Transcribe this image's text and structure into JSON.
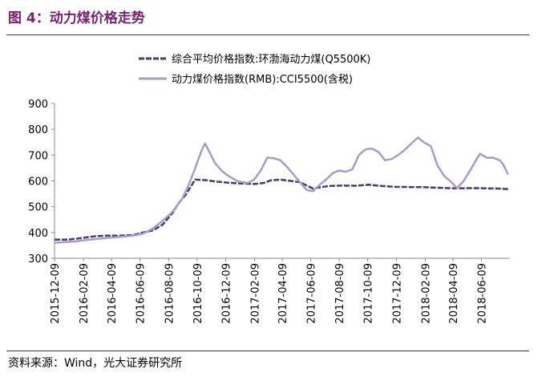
{
  "figure_title": "图 4：动力煤价格走势",
  "source_note": "资料来源：Wind，光大证券研究所",
  "colors": {
    "series1": "#4b3a6b",
    "series2": "#a99ac8",
    "title": "#7a1f6e"
  },
  "chart_data": {
    "type": "line",
    "title": "",
    "xlabel": "",
    "ylabel": "",
    "ylim": [
      300,
      900
    ],
    "yticks": [
      300,
      400,
      500,
      600,
      700,
      800,
      900
    ],
    "xlim": [
      "2015-12-09",
      "2018-08-09"
    ],
    "xticks": [
      "2015-12-09",
      "2016-02-09",
      "2016-04-09",
      "2016-06-09",
      "2016-08-09",
      "2016-10-09",
      "2016-12-09",
      "2017-02-09",
      "2017-04-09",
      "2017-06-09",
      "2017-08-09",
      "2017-10-09",
      "2017-12-09",
      "2018-02-09",
      "2018-04-09",
      "2018-06-09"
    ],
    "grid": false,
    "legend": "top-center",
    "series": [
      {
        "name": "综合平均价格指数:环渤海动力煤(Q5500K)",
        "style": "dashed",
        "points": [
          [
            "2015-12-09",
            372
          ],
          [
            "2016-01-06",
            372
          ],
          [
            "2016-02-03",
            378
          ],
          [
            "2016-03-02",
            385
          ],
          [
            "2016-03-30",
            388
          ],
          [
            "2016-04-27",
            388
          ],
          [
            "2016-05-25",
            390
          ],
          [
            "2016-06-15",
            400
          ],
          [
            "2016-07-06",
            408
          ],
          [
            "2016-07-27",
            430
          ],
          [
            "2016-08-17",
            475
          ],
          [
            "2016-08-31",
            515
          ],
          [
            "2016-09-14",
            545
          ],
          [
            "2016-09-28",
            585
          ],
          [
            "2016-10-05",
            605
          ],
          [
            "2016-10-26",
            603
          ],
          [
            "2016-11-16",
            598
          ],
          [
            "2016-12-14",
            593
          ],
          [
            "2017-01-11",
            590
          ],
          [
            "2017-02-08",
            588
          ],
          [
            "2017-03-01",
            592
          ],
          [
            "2017-03-15",
            602
          ],
          [
            "2017-04-05",
            605
          ],
          [
            "2017-04-26",
            600
          ],
          [
            "2017-05-17",
            595
          ],
          [
            "2017-05-31",
            582
          ],
          [
            "2017-06-14",
            570
          ],
          [
            "2017-06-28",
            575
          ],
          [
            "2017-07-19",
            580
          ],
          [
            "2017-08-16",
            582
          ],
          [
            "2017-09-13",
            581
          ],
          [
            "2017-10-11",
            585
          ],
          [
            "2017-11-08",
            580
          ],
          [
            "2017-12-06",
            577
          ],
          [
            "2018-01-03",
            576
          ],
          [
            "2018-01-31",
            576
          ],
          [
            "2018-02-28",
            574
          ],
          [
            "2018-03-28",
            572
          ],
          [
            "2018-04-25",
            571
          ],
          [
            "2018-05-23",
            572
          ],
          [
            "2018-06-20",
            571
          ],
          [
            "2018-07-18",
            570
          ],
          [
            "2018-08-05",
            568
          ]
        ]
      },
      {
        "name": "动力煤价格指数(RMB):CCI5500(含税)",
        "style": "solid",
        "points": [
          [
            "2015-12-09",
            360
          ],
          [
            "2015-12-30",
            363
          ],
          [
            "2016-01-20",
            365
          ],
          [
            "2016-02-10",
            370
          ],
          [
            "2016-03-09",
            375
          ],
          [
            "2016-04-06",
            380
          ],
          [
            "2016-05-04",
            384
          ],
          [
            "2016-05-25",
            388
          ],
          [
            "2016-06-15",
            395
          ],
          [
            "2016-07-06",
            415
          ],
          [
            "2016-07-27",
            445
          ],
          [
            "2016-08-17",
            480
          ],
          [
            "2016-09-07",
            530
          ],
          [
            "2016-09-21",
            585
          ],
          [
            "2016-10-05",
            650
          ],
          [
            "2016-10-19",
            720
          ],
          [
            "2016-10-26",
            745
          ],
          [
            "2016-11-02",
            720
          ],
          [
            "2016-11-16",
            670
          ],
          [
            "2016-11-30",
            640
          ],
          [
            "2016-12-14",
            620
          ],
          [
            "2017-01-04",
            598
          ],
          [
            "2017-01-25",
            592
          ],
          [
            "2017-02-08",
            605
          ],
          [
            "2017-02-22",
            640
          ],
          [
            "2017-03-08",
            690
          ],
          [
            "2017-03-22",
            688
          ],
          [
            "2017-04-05",
            680
          ],
          [
            "2017-04-19",
            655
          ],
          [
            "2017-05-03",
            625
          ],
          [
            "2017-05-17",
            595
          ],
          [
            "2017-05-31",
            565
          ],
          [
            "2017-06-14",
            560
          ],
          [
            "2017-06-28",
            585
          ],
          [
            "2017-07-12",
            605
          ],
          [
            "2017-07-26",
            630
          ],
          [
            "2017-08-09",
            640
          ],
          [
            "2017-08-23",
            635
          ],
          [
            "2017-09-06",
            645
          ],
          [
            "2017-09-20",
            700
          ],
          [
            "2017-10-04",
            722
          ],
          [
            "2017-10-18",
            725
          ],
          [
            "2017-11-01",
            712
          ],
          [
            "2017-11-15",
            680
          ],
          [
            "2017-11-29",
            685
          ],
          [
            "2017-12-13",
            700
          ],
          [
            "2017-12-27",
            720
          ],
          [
            "2018-01-10",
            745
          ],
          [
            "2018-01-24",
            768
          ],
          [
            "2018-02-07",
            748
          ],
          [
            "2018-02-21",
            735
          ],
          [
            "2018-03-07",
            660
          ],
          [
            "2018-03-21",
            620
          ],
          [
            "2018-04-04",
            598
          ],
          [
            "2018-04-18",
            572
          ],
          [
            "2018-05-02",
            600
          ],
          [
            "2018-05-16",
            640
          ],
          [
            "2018-05-30",
            685
          ],
          [
            "2018-06-06",
            705
          ],
          [
            "2018-06-20",
            690
          ],
          [
            "2018-07-04",
            690
          ],
          [
            "2018-07-18",
            680
          ],
          [
            "2018-07-25",
            665
          ],
          [
            "2018-08-05",
            625
          ]
        ]
      }
    ]
  }
}
